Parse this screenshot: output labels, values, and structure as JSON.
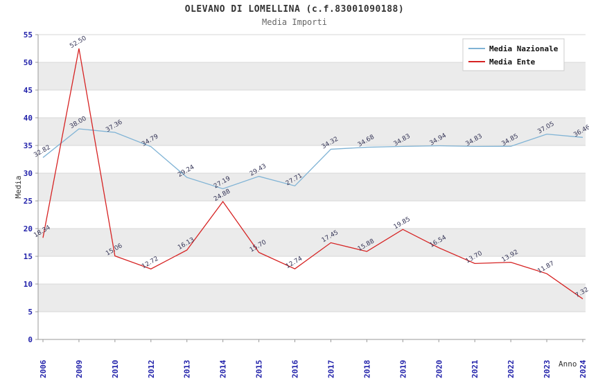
{
  "chart_data": {
    "type": "line",
    "title": "OLEVANO DI LOMELLINA (c.f.83001090188)",
    "subtitle": "Media Importi",
    "xlabel": "Anno",
    "ylabel": "Media",
    "ylim": [
      0,
      55
    ],
    "ytick_step": 5,
    "grid": true,
    "legend_position": "top-right",
    "categories": [
      "2006",
      "2009",
      "2010",
      "2012",
      "2013",
      "2014",
      "2015",
      "2016",
      "2017",
      "2018",
      "2019",
      "2020",
      "2021",
      "2022",
      "2023",
      "2024"
    ],
    "series": [
      {
        "name": "Media Nazionale",
        "color": "#7fb3d5",
        "values": [
          32.82,
          38.0,
          37.36,
          34.79,
          29.24,
          27.19,
          29.43,
          27.71,
          34.32,
          34.68,
          34.83,
          34.94,
          34.83,
          34.85,
          37.05,
          36.46
        ]
      },
      {
        "name": "Media Ente",
        "color": "#d62222",
        "values": [
          18.34,
          52.5,
          15.06,
          12.72,
          16.13,
          24.88,
          15.7,
          12.74,
          17.45,
          15.88,
          19.85,
          16.54,
          13.7,
          13.92,
          11.87,
          7.32
        ]
      }
    ],
    "colors": {
      "band": "#ebebeb",
      "grid": "#d7d7d7",
      "axis": "#999999",
      "tick": "#2222aa",
      "point_label": "#333355",
      "axis_title": "#333333",
      "legend_text": "#111111",
      "legend_border": "#cccccc"
    }
  }
}
